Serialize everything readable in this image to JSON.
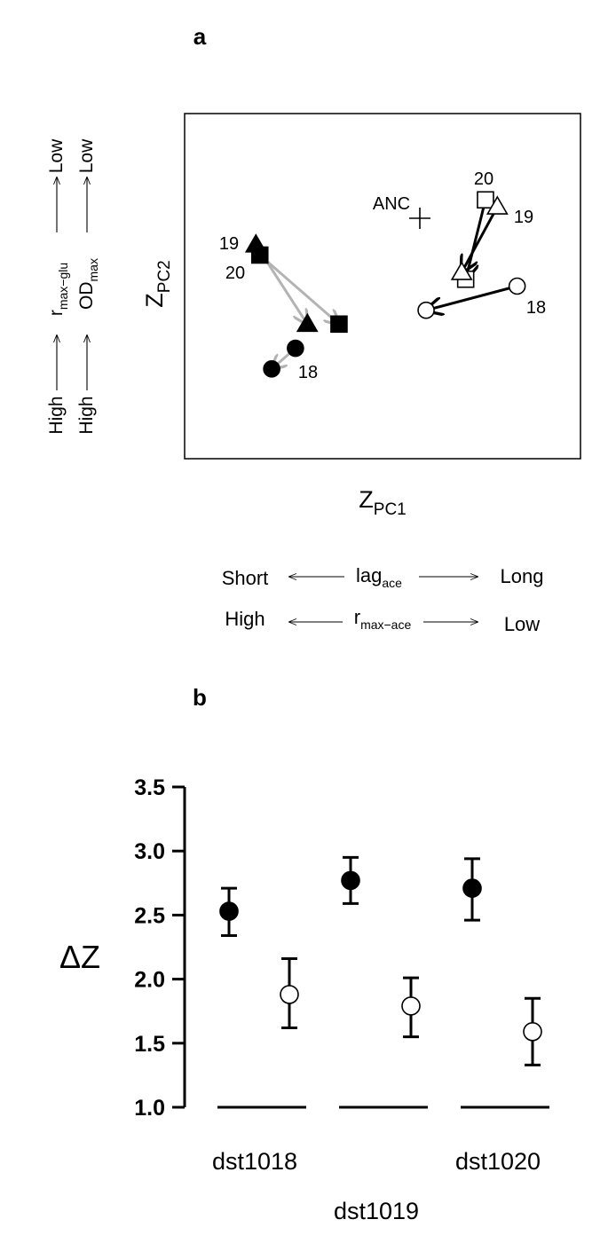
{
  "panel_a": {
    "label": "a",
    "xlabel_main": "Z",
    "xlabel_sub": "PC1",
    "ylabel_main": "Z",
    "ylabel_sub": "PC2",
    "anc_label": "ANC",
    "left_axis": {
      "top": {
        "r": "r",
        "sub": "max−glu",
        "high": "High",
        "low": "Low"
      },
      "bottom": {
        "main": "OD",
        "sub": "max",
        "high": "High",
        "low": "Low"
      }
    },
    "bottom_axis": {
      "row1": {
        "left": "Short",
        "main": "lag",
        "sub": "ace",
        "right": "Long"
      },
      "row2": {
        "left": "High",
        "main": "r",
        "sub": "max−ace",
        "right": "Low"
      }
    },
    "point_labels": {
      "filled_19": "19",
      "filled_20": "20",
      "filled_18": "18",
      "open_20": "20",
      "open_19": "19",
      "open_18": "18"
    }
  },
  "panel_b": {
    "label": "b",
    "ylabel": "ΔZ"
  },
  "chart_data": [
    {
      "type": "scatter",
      "title": "a",
      "xlabel": "Z_PC1",
      "ylabel": "Z_PC2",
      "anc": {
        "label": "ANC"
      },
      "series": [
        {
          "name": "filled",
          "color": "#000000",
          "arrow_color": "#b3b3b3",
          "points": [
            {
              "label": "19",
              "marker": "triangle",
              "from": [
                0.18,
                0.62
              ],
              "to": [
                0.31,
                0.39
              ]
            },
            {
              "label": "20",
              "marker": "square",
              "from": [
                0.19,
                0.59
              ],
              "to": [
                0.39,
                0.39
              ]
            },
            {
              "label": "18",
              "marker": "circle",
              "from": [
                0.28,
                0.32
              ],
              "to": [
                0.22,
                0.26
              ]
            }
          ]
        },
        {
          "name": "open",
          "color": "#000000",
          "arrow_color": "#000000",
          "points": [
            {
              "label": "20",
              "marker": "square",
              "from": [
                0.76,
                0.75
              ],
              "to": [
                0.71,
                0.52
              ]
            },
            {
              "label": "19",
              "marker": "triangle",
              "from": [
                0.79,
                0.73
              ],
              "to": [
                0.7,
                0.54
              ]
            },
            {
              "label": "18",
              "marker": "circle",
              "from": [
                0.84,
                0.5
              ],
              "to": [
                0.61,
                0.43
              ]
            }
          ]
        }
      ],
      "anc_point": [
        0.59,
        0.7
      ]
    },
    {
      "type": "scatter",
      "title": "b",
      "ylabel": "ΔZ",
      "ylim": [
        1.0,
        3.5
      ],
      "yticks": [
        1.0,
        1.5,
        2.0,
        2.5,
        3.0,
        3.5
      ],
      "ytick_labels": [
        "1.0",
        "1.5",
        "2.0",
        "2.5",
        "3.0",
        "3.5"
      ],
      "categories": [
        "dst1018",
        "dst1019",
        "dst1020"
      ],
      "series": [
        {
          "name": "filled",
          "values": [
            2.53,
            2.77,
            2.71
          ],
          "err_low": [
            2.34,
            2.59,
            2.46
          ],
          "err_high": [
            2.71,
            2.95,
            2.94
          ]
        },
        {
          "name": "open",
          "values": [
            1.88,
            1.79,
            1.59
          ],
          "err_low": [
            1.62,
            1.55,
            1.33
          ],
          "err_high": [
            2.16,
            2.01,
            1.85
          ]
        }
      ]
    }
  ]
}
